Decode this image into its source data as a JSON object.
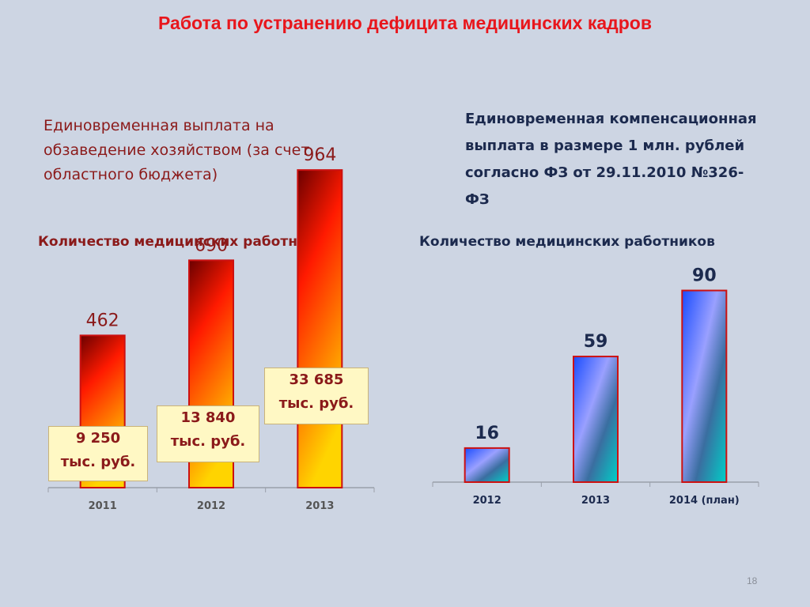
{
  "slide": {
    "title": "Работа по устранению дефицита медицинских кадров",
    "page_number": "18"
  },
  "left": {
    "subtitle": "Единовременная выплата на обзаведение хозяйством (за счет областного бюджета)",
    "caption": "Количество медицинских работников",
    "callouts": [
      {
        "line1": "9 250",
        "line2": "тыс. руб."
      },
      {
        "line1": "13 840",
        "line2": "тыс. руб."
      },
      {
        "line1": "33 685",
        "line2": "тыс. руб."
      }
    ]
  },
  "right": {
    "subtitle": "Единовременная компенсационная выплата в размере 1 млн. рублей согласно ФЗ от 29.11.2010 №326-ФЗ",
    "caption": "Количество медицинских работников"
  },
  "chart_data": [
    {
      "type": "bar",
      "categories": [
        "2011",
        "2012",
        "2013"
      ],
      "values": [
        462,
        690,
        964
      ],
      "value_labels": [
        "462",
        "690",
        "964"
      ],
      "ylim": [
        0,
        1480
      ],
      "grid": false,
      "colors": {
        "top": "#6b0000",
        "mid": "#ff1a00",
        "bottom": "#ffd400",
        "border": "#cc1111"
      }
    },
    {
      "type": "bar",
      "categories": [
        "2012",
        "2013",
        "2014 (план)"
      ],
      "values": [
        16,
        59,
        90
      ],
      "value_labels": [
        "16",
        "59",
        "90"
      ],
      "ylim": [
        0,
        98
      ],
      "grid": false,
      "colors": {
        "a": "#1a4cff",
        "b": "#9aa0ff",
        "c": "#00d0c8",
        "border": "#cc1111"
      }
    }
  ]
}
